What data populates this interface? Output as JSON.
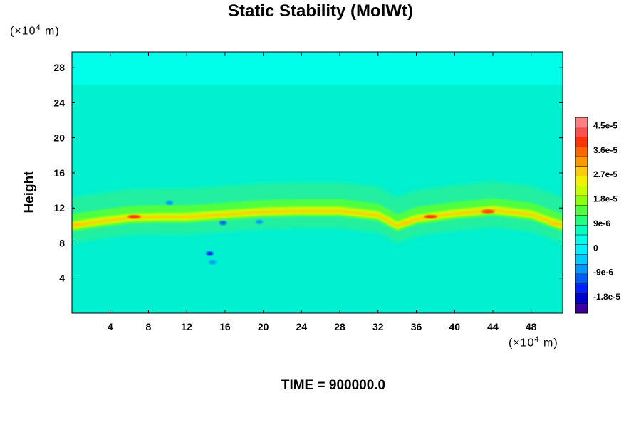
{
  "chart_data": {
    "type": "heatmap",
    "title": "Static Stability (MolWt)",
    "ylabel": "Height",
    "x_unit": {
      "prefix": "(×10",
      "exp": "4",
      "suffix": " m)"
    },
    "y_unit": {
      "prefix": "(×10",
      "exp": "4",
      "suffix": " m)"
    },
    "xlim": [
      0,
      51.3
    ],
    "ylim": [
      0,
      29.8
    ],
    "x_ticks": [
      4,
      8,
      12,
      16,
      20,
      24,
      28,
      32,
      36,
      40,
      44,
      48
    ],
    "y_ticks": [
      4,
      8,
      12,
      16,
      20,
      24,
      28
    ],
    "colorbar": {
      "min": -2.4e-05,
      "max": 4.8e-05,
      "labels": [
        {
          "value": 4.5e-05,
          "text": "4.5e-5"
        },
        {
          "value": 3.6e-05,
          "text": "3.6e-5"
        },
        {
          "value": 2.7e-05,
          "text": "2.7e-5"
        },
        {
          "value": 1.8e-05,
          "text": "1.8e-5"
        },
        {
          "value": 9e-06,
          "text": "9e-6"
        },
        {
          "value": 0,
          "text": "0"
        },
        {
          "value": -9e-06,
          "text": "-9e-6"
        },
        {
          "value": -1.8e-05,
          "text": "-1.8e-5"
        }
      ],
      "colors": [
        "#3a0099",
        "#0000cc",
        "#0020ff",
        "#005cff",
        "#0098ff",
        "#00ccff",
        "#00f0ff",
        "#00ffea",
        "#00ffc0",
        "#20ff80",
        "#50ff40",
        "#8cff10",
        "#c8ff00",
        "#f0f000",
        "#ffcc00",
        "#ff9900",
        "#ff6600",
        "#ff3300",
        "#ff5050",
        "#ff8080"
      ]
    },
    "fields": {
      "background": "#00f0d0",
      "upper_layer": {
        "color": "#00ffea",
        "y_from": 26,
        "y_to": 29.8
      },
      "tropopause_band": [
        [
          0,
          10
        ],
        [
          3,
          10.5
        ],
        [
          6,
          10.9
        ],
        [
          9,
          11
        ],
        [
          12,
          11
        ],
        [
          16,
          11.3
        ],
        [
          20,
          11.6
        ],
        [
          24,
          11.7
        ],
        [
          28,
          11.7
        ],
        [
          32,
          11.2
        ],
        [
          34,
          10
        ],
        [
          36,
          10.8
        ],
        [
          40,
          11.4
        ],
        [
          44,
          11.8
        ],
        [
          48,
          11.3
        ],
        [
          51.3,
          10
        ]
      ],
      "hotspots": [
        {
          "x": 6.5,
          "y": 11.0,
          "color": "#ff3300"
        },
        {
          "x": 37.5,
          "y": 11.0,
          "color": "#ff3300"
        },
        {
          "x": 43.5,
          "y": 11.6,
          "color": "#ff3300"
        },
        {
          "x": 35,
          "y": 10.3,
          "color": "#ffcc00"
        },
        {
          "x": 0.5,
          "y": 10.1,
          "color": "#ffcc00"
        },
        {
          "x": 50.5,
          "y": 10.2,
          "color": "#ffcc00"
        }
      ],
      "cold_spots": [
        {
          "x": 14.4,
          "y": 6.8,
          "color": "#0020ff"
        },
        {
          "x": 15.8,
          "y": 10.3,
          "color": "#005cff"
        },
        {
          "x": 19.6,
          "y": 10.4,
          "color": "#0098ff"
        },
        {
          "x": 10.2,
          "y": 12.6,
          "color": "#0098ff"
        },
        {
          "x": 14.7,
          "y": 5.8,
          "color": "#0098ff"
        }
      ]
    }
  },
  "footer": {
    "time": "TIME = 900000.0"
  }
}
